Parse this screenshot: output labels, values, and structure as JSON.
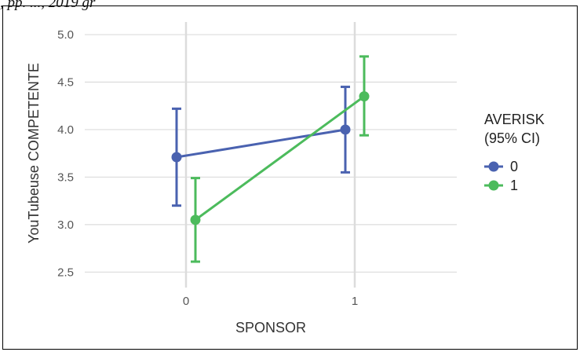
{
  "caption_fragment": ", pp. ..., 2019 gr",
  "chart_data": {
    "type": "line",
    "xlabel": "SPONSOR",
    "ylabel": "YouTubeuse COMPETENTE",
    "categories": [
      "0",
      "1"
    ],
    "yticks": [
      "2.5",
      "3.0",
      "3.5",
      "4.0",
      "4.5",
      "5.0"
    ],
    "ytick_values": [
      2.5,
      3.0,
      3.5,
      4.0,
      4.5,
      5.0
    ],
    "ylim": [
      2.42,
      5.05
    ],
    "grid": true,
    "legend_title_line1": "AVERISK",
    "legend_title_line2": "(95% CI)",
    "legend_position": "right",
    "series": [
      {
        "name": "0",
        "color": "#4a62b0",
        "values": [
          3.71,
          4.0
        ],
        "ci_low": [
          3.2,
          3.55
        ],
        "ci_high": [
          4.22,
          4.45
        ]
      },
      {
        "name": "1",
        "color": "#4cbb5c",
        "values": [
          3.05,
          4.35
        ],
        "ci_low": [
          2.61,
          3.94
        ],
        "ci_high": [
          3.49,
          4.77
        ]
      }
    ]
  }
}
